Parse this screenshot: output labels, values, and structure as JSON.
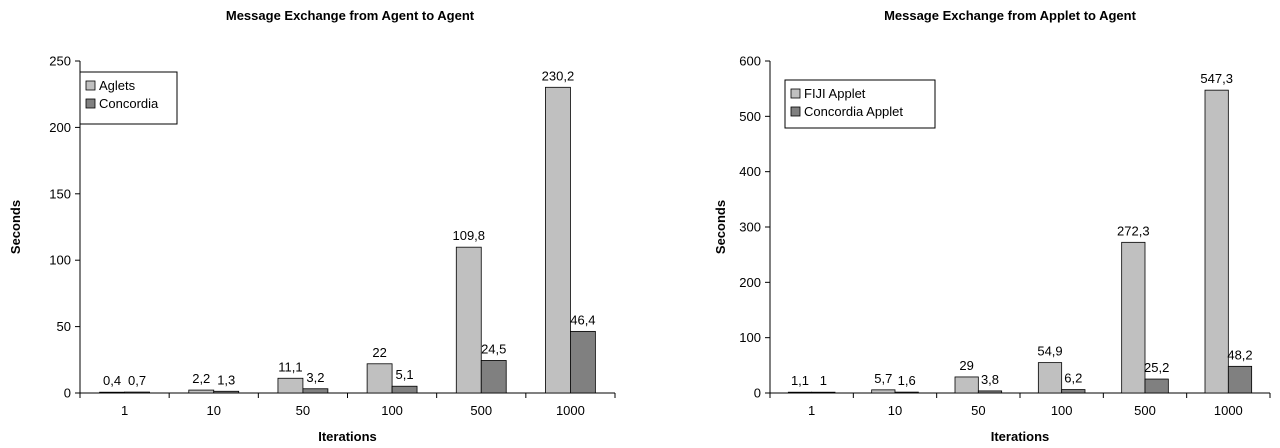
{
  "chart_data": [
    {
      "type": "bar",
      "title": "Message Exchange from Agent to Agent",
      "xlabel": "Iterations",
      "ylabel": "Seconds",
      "categories": [
        "1",
        "10",
        "50",
        "100",
        "500",
        "1000"
      ],
      "series": [
        {
          "name": "Aglets",
          "values": [
            0.4,
            2.2,
            11.1,
            22,
            109.8,
            230.2
          ],
          "labels": [
            "0,4",
            "2,2",
            "11,1",
            "22",
            "109,8",
            "230,2"
          ],
          "color": "#C0C0C0"
        },
        {
          "name": "Concordia",
          "values": [
            0.7,
            1.3,
            3.2,
            5.1,
            24.5,
            46.4
          ],
          "labels": [
            "0,7",
            "1,3",
            "3,2",
            "5,1",
            "24,5",
            "46,4"
          ],
          "color": "#808080"
        }
      ],
      "ylim": [
        0,
        250
      ],
      "yticks": [
        0,
        50,
        100,
        150,
        200,
        250
      ],
      "grid": false,
      "legend": "top-left"
    },
    {
      "type": "bar",
      "title": "Message Exchange from Applet to Agent",
      "xlabel": "Iterations",
      "ylabel": "Seconds",
      "categories": [
        "1",
        "10",
        "50",
        "100",
        "500",
        "1000"
      ],
      "series": [
        {
          "name": "FIJI Applet",
          "values": [
            1.1,
            5.7,
            29,
            54.9,
            272.3,
            547.3
          ],
          "labels": [
            "1,1",
            "5,7",
            "29",
            "54,9",
            "272,3",
            "547,3"
          ],
          "color": "#C0C0C0"
        },
        {
          "name": "Concordia Applet",
          "values": [
            1,
            1.6,
            3.8,
            6.2,
            25.2,
            48.2
          ],
          "labels": [
            "1",
            "1,6",
            "3,8",
            "6,2",
            "25,2",
            "48,2"
          ],
          "color": "#808080"
        }
      ],
      "ylim": [
        0,
        600
      ],
      "yticks": [
        0,
        100,
        200,
        300,
        400,
        500,
        600
      ],
      "grid": false,
      "legend": "top-left"
    }
  ]
}
